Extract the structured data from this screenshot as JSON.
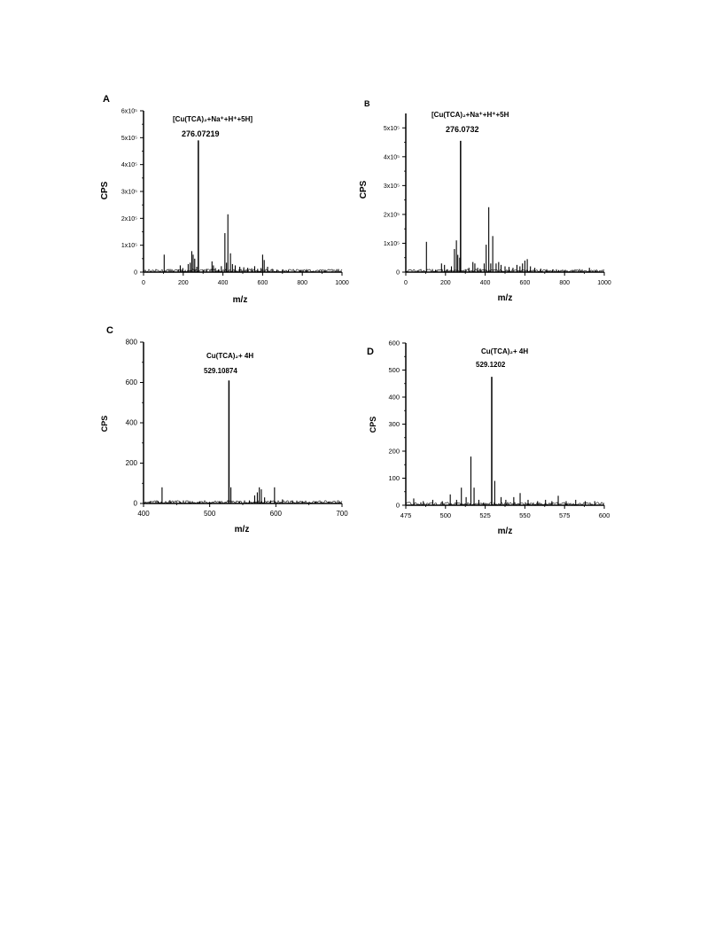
{
  "chart_data": [
    {
      "panel": "A",
      "type": "bar",
      "xlabel": "m/z",
      "ylabel": "CPS",
      "xlim": [
        0,
        1000
      ],
      "ylim": [
        0,
        600000
      ],
      "x_ticks": [
        0,
        200,
        400,
        600,
        800,
        1000
      ],
      "x_tick_labels": [
        "0",
        "200",
        "400",
        "600",
        "800",
        "1000"
      ],
      "y_ticks": [
        0,
        100000,
        200000,
        300000,
        400000,
        500000,
        600000
      ],
      "y_tick_labels": [
        "0",
        "1x10⁵",
        "2x10⁵",
        "3x10⁵",
        "4x10⁵",
        "5x10⁵",
        "6x10⁵"
      ],
      "annotation_formula": "[Cu(TCA)₂+Na⁺+H⁺+5H]",
      "annotation_value": "276.07219",
      "base_peak": {
        "x": 276.07219,
        "y": 490000
      },
      "x": [
        104,
        150,
        175,
        185,
        198,
        210,
        225,
        235,
        243,
        250,
        258,
        268,
        300,
        318,
        345,
        352,
        362,
        378,
        392,
        410,
        418,
        425,
        438,
        448,
        462,
        485,
        505,
        525,
        545,
        560,
        575,
        592,
        600,
        608,
        625,
        648,
        672,
        700,
        730,
        760,
        790,
        820,
        855,
        885,
        915,
        950
      ],
      "y": [
        65000,
        5000,
        10000,
        25000,
        15000,
        8000,
        30000,
        35000,
        78000,
        65000,
        50000,
        20000,
        8000,
        12000,
        40000,
        25000,
        15000,
        10000,
        22000,
        145000,
        35000,
        215000,
        70000,
        30000,
        25000,
        20000,
        18000,
        16000,
        14000,
        22000,
        12000,
        15000,
        65000,
        45000,
        20000,
        10000,
        9000,
        8000,
        7000,
        6000,
        7000,
        6000,
        5000,
        6000,
        9000,
        4000
      ]
    },
    {
      "panel": "B",
      "type": "bar",
      "xlabel": "m/z",
      "ylabel": "CPS",
      "xlim": [
        0,
        1000
      ],
      "ylim": [
        0,
        550000
      ],
      "x_ticks": [
        0,
        200,
        400,
        600,
        800,
        1000
      ],
      "x_tick_labels": [
        "0",
        "200",
        "400",
        "600",
        "800",
        "1000"
      ],
      "y_ticks": [
        0,
        100000,
        200000,
        300000,
        400000,
        500000
      ],
      "y_tick_labels": [
        "0",
        "1x10⁵",
        "2x10⁵",
        "3x10⁵",
        "4x10⁵",
        "5x10⁵"
      ],
      "annotation_formula": "[Cu(TCA)₂+Na⁺+H⁺+5H",
      "annotation_value": "276.0732",
      "base_peak": {
        "x": 276.0732,
        "y": 455000
      },
      "x": [
        104,
        150,
        180,
        195,
        210,
        230,
        245,
        255,
        262,
        272,
        300,
        318,
        338,
        348,
        362,
        375,
        395,
        405,
        418,
        428,
        438,
        455,
        468,
        480,
        500,
        520,
        540,
        560,
        575,
        588,
        600,
        612,
        628,
        650,
        680,
        710,
        740,
        770,
        800,
        840,
        880,
        925,
        960
      ],
      "y": [
        105000,
        8000,
        30000,
        25000,
        10000,
        20000,
        80000,
        110000,
        60000,
        50000,
        10000,
        15000,
        35000,
        30000,
        15000,
        12000,
        30000,
        95000,
        225000,
        30000,
        125000,
        30000,
        35000,
        25000,
        20000,
        18000,
        15000,
        25000,
        20000,
        30000,
        40000,
        45000,
        20000,
        15000,
        12000,
        10000,
        9000,
        7000,
        6000,
        5000,
        6000,
        15000,
        5000
      ]
    },
    {
      "panel": "C",
      "type": "bar",
      "xlabel": "m/z",
      "ylabel": "CPS",
      "xlim": [
        400,
        700
      ],
      "ylim": [
        0,
        800
      ],
      "x_ticks": [
        400,
        500,
        600,
        700
      ],
      "x_tick_labels": [
        "400",
        "500",
        "600",
        "700"
      ],
      "y_ticks": [
        0,
        200,
        400,
        600,
        800
      ],
      "y_tick_labels": [
        "0",
        "200",
        "400",
        "600",
        "800"
      ],
      "annotation_formula": "Cu(TCA)₂+ 4H",
      "annotation_value": "529.10874",
      "base_peak": {
        "x": 529.10874,
        "y": 610
      },
      "x": [
        410,
        422,
        428,
        440,
        455,
        470,
        485,
        500,
        515,
        532,
        545,
        560,
        568,
        572,
        575,
        578,
        583,
        592,
        598,
        610,
        625,
        640,
        660,
        680,
        695
      ],
      "y": [
        10,
        12,
        80,
        15,
        10,
        12,
        10,
        8,
        12,
        80,
        10,
        15,
        40,
        55,
        80,
        70,
        30,
        15,
        80,
        20,
        15,
        12,
        10,
        10,
        8
      ]
    },
    {
      "panel": "D",
      "type": "bar",
      "xlabel": "m/z",
      "ylabel": "CPS",
      "xlim": [
        475,
        600
      ],
      "ylim": [
        0,
        600
      ],
      "x_ticks": [
        475,
        500,
        525,
        550,
        575,
        600
      ],
      "x_tick_labels": [
        "475",
        "500",
        "525",
        "550",
        "575",
        "600"
      ],
      "y_ticks": [
        0,
        100,
        200,
        300,
        400,
        500,
        600
      ],
      "y_tick_labels": [
        "0",
        "100",
        "200",
        "300",
        "400",
        "500",
        "600"
      ],
      "annotation_formula": "Cu(TCA)₂+ 4H",
      "annotation_value": "529.1202",
      "base_peak": {
        "x": 529.1202,
        "y": 475
      },
      "x": [
        480,
        486,
        492,
        498,
        503,
        507,
        510,
        513,
        516,
        518,
        521,
        524,
        531,
        535,
        538,
        543,
        547,
        552,
        558,
        563,
        567,
        571,
        576,
        582,
        588,
        594
      ],
      "y": [
        25,
        15,
        20,
        15,
        40,
        20,
        65,
        30,
        180,
        65,
        20,
        10,
        90,
        30,
        20,
        30,
        45,
        20,
        15,
        20,
        15,
        35,
        15,
        20,
        15,
        15
      ]
    }
  ]
}
